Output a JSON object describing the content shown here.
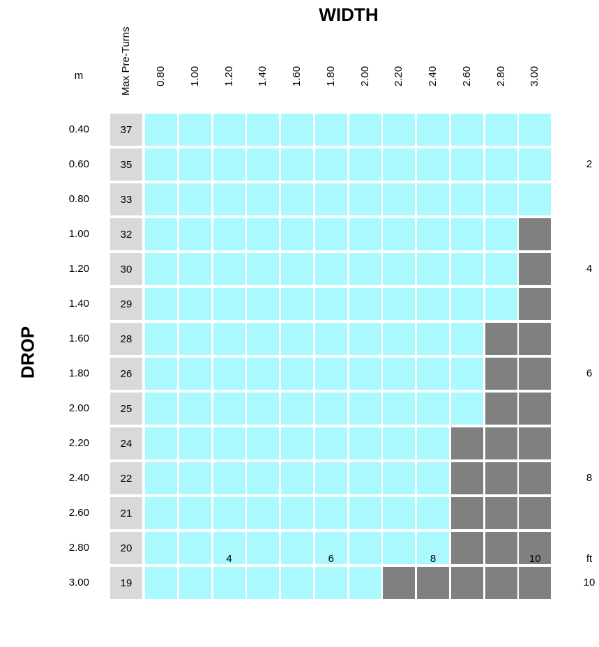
{
  "chart_data": {
    "type": "heatmap",
    "title": "WIDTH",
    "ylabel": "DROP",
    "x_unit": "m",
    "turns_header": "Max Pre-Turns",
    "widths": [
      "0.80",
      "1.00",
      "1.20",
      "1.40",
      "1.60",
      "1.80",
      "2.00",
      "2.20",
      "2.40",
      "2.60",
      "2.80",
      "3.00"
    ],
    "drops": [
      "0.40",
      "0.60",
      "0.80",
      "1.00",
      "1.20",
      "1.40",
      "1.60",
      "1.80",
      "2.00",
      "2.20",
      "2.40",
      "2.60",
      "2.80",
      "3.00"
    ],
    "max_pre_turns": [
      "37",
      "35",
      "33",
      "32",
      "30",
      "29",
      "28",
      "26",
      "25",
      "24",
      "22",
      "21",
      "20",
      "19"
    ],
    "available_columns_per_row": [
      12,
      12,
      12,
      11,
      11,
      11,
      10,
      10,
      10,
      9,
      9,
      9,
      9,
      7
    ],
    "colors": {
      "available": "#aaf9ff",
      "unavailable": "#808080",
      "turns_bg": "#d9d9d9"
    },
    "ft_unit": "ft",
    "ft_right": [
      {
        "label": "2",
        "drop_m": 0.6
      },
      {
        "label": "4",
        "drop_m": 1.2
      },
      {
        "label": "6",
        "drop_m": 1.8
      },
      {
        "label": "8",
        "drop_m": 2.4
      },
      {
        "label": "10",
        "drop_m": 3.0
      }
    ],
    "ft_bottom": [
      {
        "label": "4",
        "width_m": 1.2
      },
      {
        "label": "6",
        "width_m": 1.8
      },
      {
        "label": "8",
        "width_m": 2.4
      },
      {
        "label": "10",
        "width_m": 3.0
      }
    ]
  }
}
